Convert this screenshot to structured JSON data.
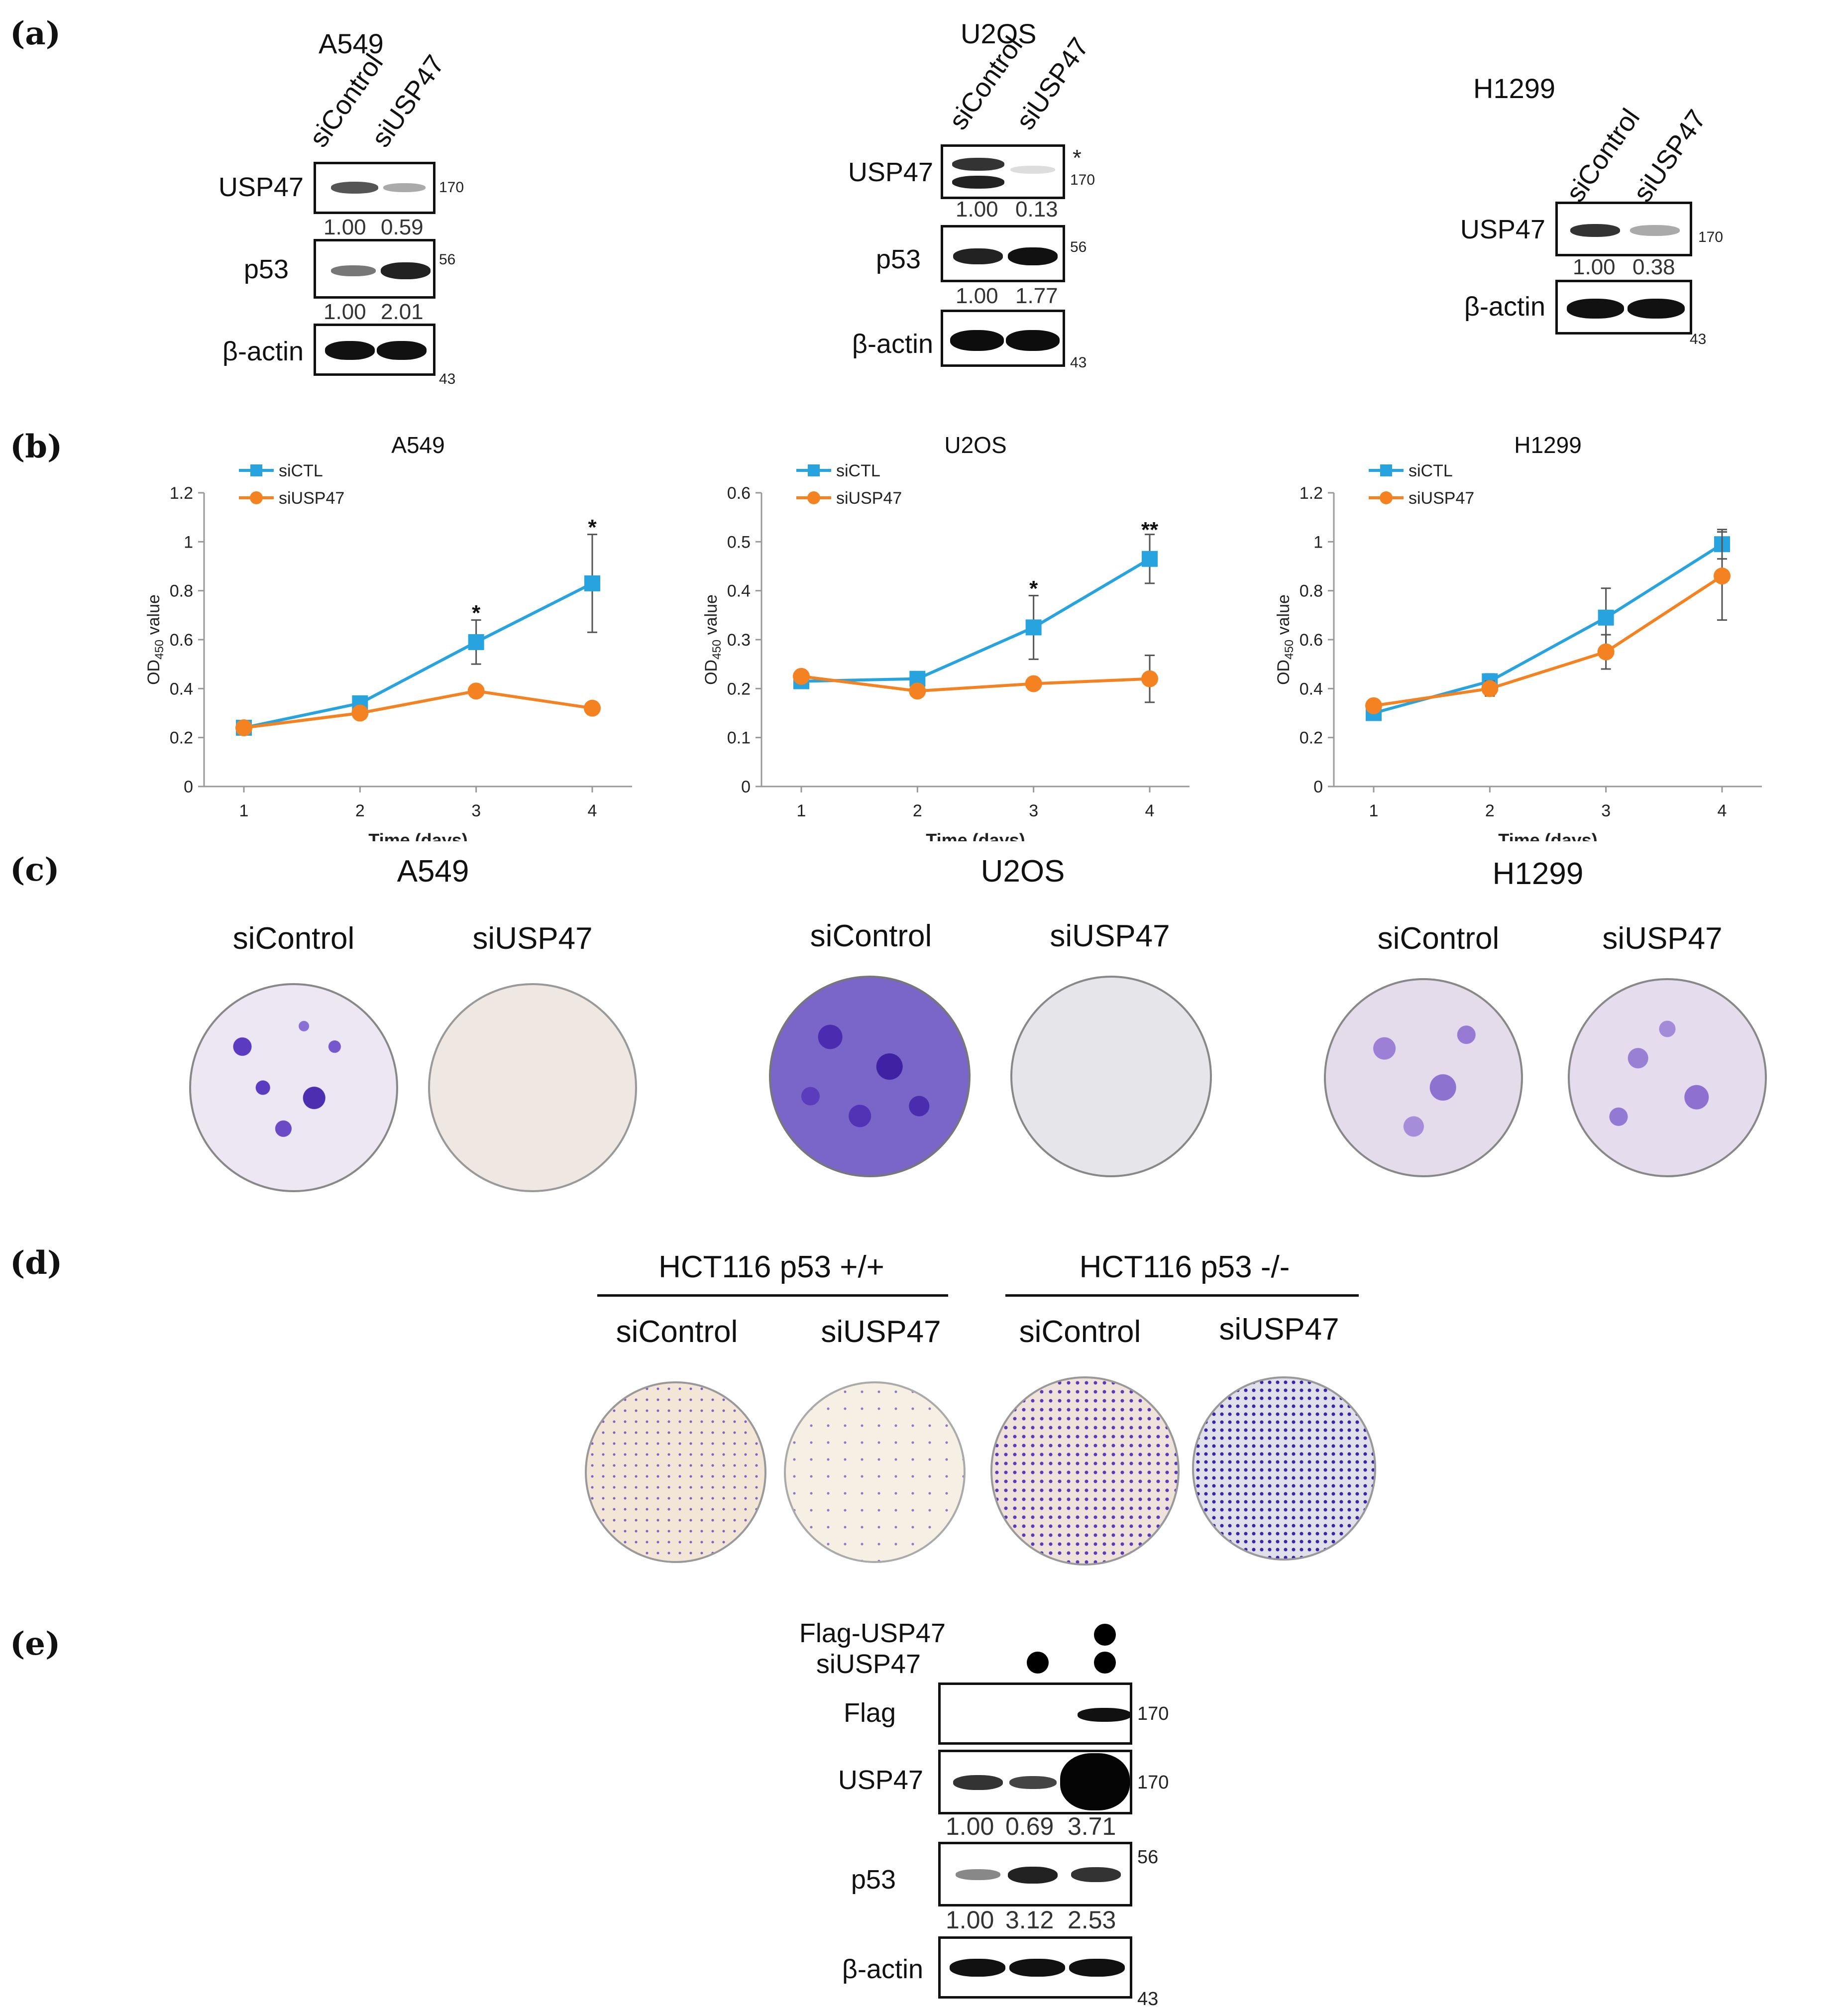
{
  "panel_a": {
    "label": "(a)",
    "blots": [
      {
        "cell_line": "A549",
        "lanes": [
          "siControl",
          "siUSP47"
        ],
        "rows": [
          {
            "label": "USP47",
            "quant": [
              "1.00",
              "0.59"
            ],
            "mw": "170"
          },
          {
            "label": "p53",
            "quant": [
              "1.00",
              "2.01"
            ],
            "mw": "56"
          },
          {
            "label": "β-actin",
            "mw": "43"
          }
        ]
      },
      {
        "cell_line": "U2OS",
        "lanes": [
          "siControl",
          "siUSP47"
        ],
        "star": "*",
        "rows": [
          {
            "label": "USP47",
            "quant": [
              "1.00",
              "0.13"
            ],
            "mw": "170"
          },
          {
            "label": "p53",
            "quant": [
              "1.00",
              "1.77"
            ],
            "mw": "56"
          },
          {
            "label": "β-actin",
            "mw": "43"
          }
        ]
      },
      {
        "cell_line": "H1299",
        "lanes": [
          "siControl",
          "siUSP47"
        ],
        "rows": [
          {
            "label": "USP47",
            "quant": [
              "1.00",
              "0.38"
            ],
            "mw": "170"
          },
          {
            "label": "β-actin",
            "mw": "43"
          }
        ]
      }
    ]
  },
  "panel_b": {
    "label": "(b)"
  },
  "chart_data": [
    {
      "type": "line",
      "title": "A549",
      "xlabel": "Time (days)",
      "ylabel": "OD450 value",
      "ylabel_main": "OD",
      "ylabel_sub": "450",
      "ylabel_tail": " value",
      "x": [
        1,
        2,
        3,
        4
      ],
      "ylim": [
        0,
        1.2
      ],
      "yticks": [
        "0",
        "0.2",
        "0.4",
        "0.6",
        "0.8",
        "1",
        "1.2"
      ],
      "series": [
        {
          "name": "siCTL",
          "color": "#27a3e0",
          "marker": "square",
          "values": [
            0.24,
            0.34,
            0.59,
            0.83
          ],
          "errors": [
            0.02,
            0.02,
            0.09,
            0.2
          ]
        },
        {
          "name": "siUSP47",
          "color": "#f58220",
          "marker": "circle",
          "values": [
            0.24,
            0.3,
            0.39,
            0.32
          ],
          "errors": [
            0.01,
            0.01,
            0.01,
            0.02
          ]
        }
      ],
      "annotations": [
        {
          "x": 3,
          "y": 0.72,
          "text": "*"
        },
        {
          "x": 4,
          "y": 1.07,
          "text": "*"
        }
      ]
    },
    {
      "type": "line",
      "title": "U2OS",
      "xlabel": "Time (days)",
      "ylabel": "OD450 value",
      "ylabel_main": "OD",
      "ylabel_sub": "450",
      "ylabel_tail": " value",
      "x": [
        1,
        2,
        3,
        4
      ],
      "ylim": [
        0,
        0.6
      ],
      "yticks": [
        "0",
        "0.1",
        "0.2",
        "0.3",
        "0.4",
        "0.5",
        "0.6"
      ],
      "series": [
        {
          "name": "siCTL",
          "color": "#27a3e0",
          "marker": "square",
          "values": [
            0.215,
            0.22,
            0.325,
            0.465
          ],
          "errors": [
            0.01,
            0.01,
            0.065,
            0.05
          ]
        },
        {
          "name": "siUSP47",
          "color": "#f58220",
          "marker": "circle",
          "values": [
            0.225,
            0.195,
            0.21,
            0.22
          ],
          "errors": [
            0.01,
            0.01,
            0.01,
            0.048
          ]
        }
      ],
      "annotations": [
        {
          "x": 3,
          "y": 0.41,
          "text": "*"
        },
        {
          "x": 4,
          "y": 0.53,
          "text": "**"
        }
      ]
    },
    {
      "type": "line",
      "title": "H1299",
      "xlabel": "Time (days)",
      "ylabel": "OD450 value",
      "ylabel_main": "OD",
      "ylabel_sub": "450",
      "ylabel_tail": " value",
      "x": [
        1,
        2,
        3,
        4
      ],
      "ylim": [
        0,
        1.2
      ],
      "yticks": [
        "0",
        "0.2",
        "0.4",
        "0.6",
        "0.8",
        "1",
        "1.2"
      ],
      "series": [
        {
          "name": "siCTL",
          "color": "#27a3e0",
          "marker": "square",
          "values": [
            0.3,
            0.43,
            0.69,
            0.99
          ],
          "errors": [
            0.02,
            0.03,
            0.12,
            0.06
          ]
        },
        {
          "name": "siUSP47",
          "color": "#f58220",
          "marker": "circle",
          "values": [
            0.33,
            0.4,
            0.55,
            0.86
          ],
          "errors": [
            0.01,
            0.03,
            0.07,
            0.18
          ]
        }
      ],
      "annotations": []
    }
  ],
  "panel_c": {
    "label": "(c)",
    "groups": [
      {
        "cell_line": "A549",
        "left": "siControl",
        "right": "siUSP47"
      },
      {
        "cell_line": "U2OS",
        "left": "siControl",
        "right": "siUSP47"
      },
      {
        "cell_line": "H1299",
        "left": "siControl",
        "right": "siUSP47"
      }
    ]
  },
  "panel_d": {
    "label": "(d)",
    "groups": [
      {
        "title": "HCT116 p53 +/+",
        "left": "siControl",
        "right": "siUSP47"
      },
      {
        "title": "HCT116 p53 -/-",
        "left": "siControl",
        "right": "siUSP47"
      }
    ]
  },
  "panel_e": {
    "label": "(e)",
    "conditions": [
      {
        "name": "Flag-USP47",
        "lanes": [
          false,
          false,
          true
        ]
      },
      {
        "name": "siUSP47",
        "lanes": [
          false,
          true,
          true
        ]
      }
    ],
    "rows": [
      {
        "label": "Flag",
        "mw": "170"
      },
      {
        "label": "USP47",
        "mw": "170",
        "quant": [
          "1.00",
          "0.69",
          "3.71"
        ]
      },
      {
        "label": "p53",
        "mw": "56",
        "quant": [
          "1.00",
          "3.12",
          "2.53"
        ]
      },
      {
        "label": "β-actin",
        "mw": "43"
      }
    ]
  }
}
